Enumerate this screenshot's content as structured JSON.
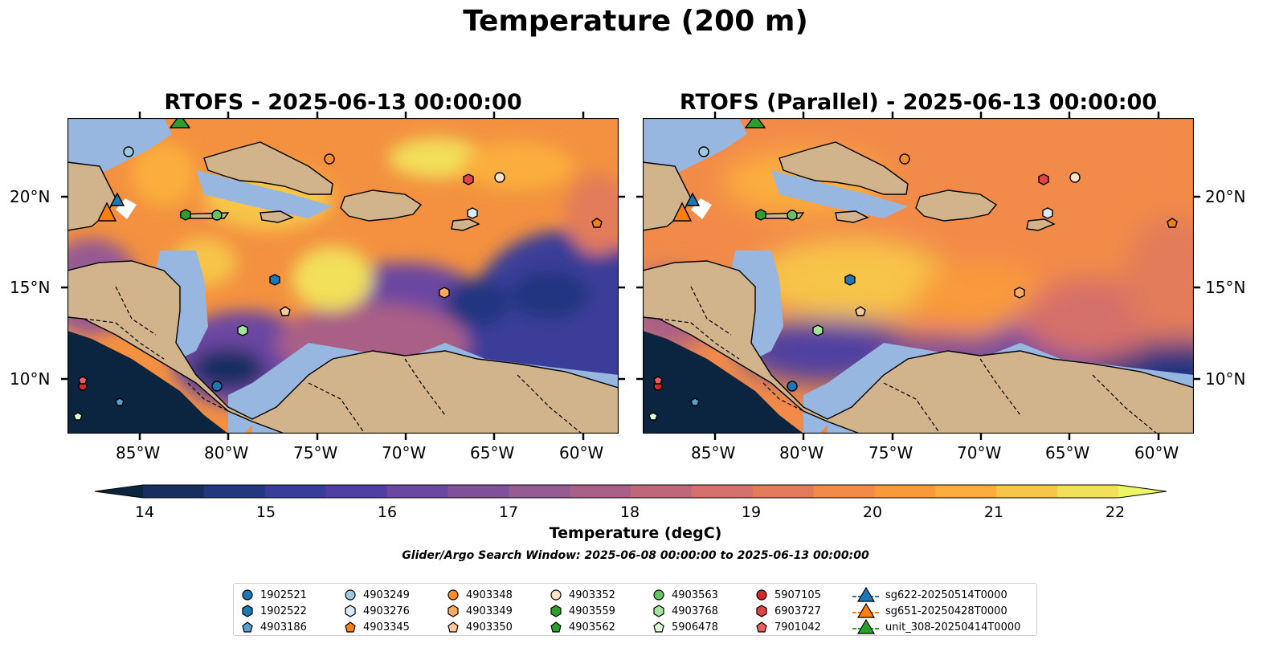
{
  "figure": {
    "title": "Temperature (200 m)",
    "panels": [
      {
        "title": "RTOFS - 2025-06-13 00:00:00"
      },
      {
        "title": "RTOFS (Parallel) - 2025-06-13 00:00:00"
      }
    ],
    "x_ticks": [
      "85°W",
      "80°W",
      "75°W",
      "70°W",
      "65°W",
      "60°W"
    ],
    "y_ticks": [
      "20°N",
      "15°N",
      "10°N"
    ],
    "colorbar": {
      "label": "Temperature (degC)",
      "ticks": [
        "14",
        "15",
        "16",
        "17",
        "18",
        "19",
        "20",
        "21",
        "22"
      ],
      "extend": "both",
      "colors": [
        "#0b2540",
        "#172e60",
        "#233680",
        "#3a3d98",
        "#503fa0",
        "#6a47a1",
        "#80509a",
        "#955a92",
        "#a95f86",
        "#bf677a",
        "#d4706b",
        "#e27b5a",
        "#f28b49",
        "#f99a3a",
        "#fbae3e",
        "#f7c54a",
        "#f2df5a",
        "#eef565"
      ]
    },
    "search_window": "Glider/Argo Search Window: 2025-06-08 00:00:00 to 2025-06-13 00:00:00",
    "colors": {
      "land": "#d2b48c",
      "shelf": "#97b6e0",
      "deep": "#0b2540"
    }
  },
  "legend": {
    "columns": [
      [
        {
          "label": "1902521",
          "marker": "circle",
          "color": "#1f77b4"
        },
        {
          "label": "1902522",
          "marker": "hexagon",
          "color": "#1f77b4"
        },
        {
          "label": "4903186",
          "marker": "pentagon",
          "color": "#5a9fd4"
        }
      ],
      [
        {
          "label": "4903249",
          "marker": "circle",
          "color": "#9ecae1"
        },
        {
          "label": "4903276",
          "marker": "hexagon",
          "color": "#d8ebf7"
        },
        {
          "label": "4903345",
          "marker": "pentagon",
          "color": "#ff7f0e"
        }
      ],
      [
        {
          "label": "4903348",
          "marker": "circle",
          "color": "#ff8c2a"
        },
        {
          "label": "4903349",
          "marker": "hexagon",
          "color": "#ffaa60"
        },
        {
          "label": "4903350",
          "marker": "pentagon",
          "color": "#ffc99a"
        }
      ],
      [
        {
          "label": "4903352",
          "marker": "circle",
          "color": "#ffe1c6"
        },
        {
          "label": "4903559",
          "marker": "hexagon",
          "color": "#2ca02c"
        },
        {
          "label": "4903562",
          "marker": "pentagon",
          "color": "#2ca02c"
        }
      ],
      [
        {
          "label": "4903563",
          "marker": "circle",
          "color": "#66c266"
        },
        {
          "label": "4903768",
          "marker": "hexagon",
          "color": "#a6e3a1"
        },
        {
          "label": "5906478",
          "marker": "pentagon",
          "color": "#dcf9d2"
        }
      ],
      [
        {
          "label": "5907105",
          "marker": "circle",
          "color": "#d62728"
        },
        {
          "label": "6903727",
          "marker": "hexagon",
          "color": "#e04444"
        },
        {
          "label": "7901042",
          "marker": "pentagon",
          "color": "#ea6060"
        }
      ],
      [
        {
          "label": "sg622-20250514T0000",
          "marker": "triangle",
          "color": "#1f77b4"
        },
        {
          "label": "sg651-20250428T0000",
          "marker": "triangle",
          "color": "#ff7f0e"
        },
        {
          "label": "unit_308-20250414T0000",
          "marker": "triangle",
          "color": "#2ca02c"
        }
      ]
    ]
  }
}
